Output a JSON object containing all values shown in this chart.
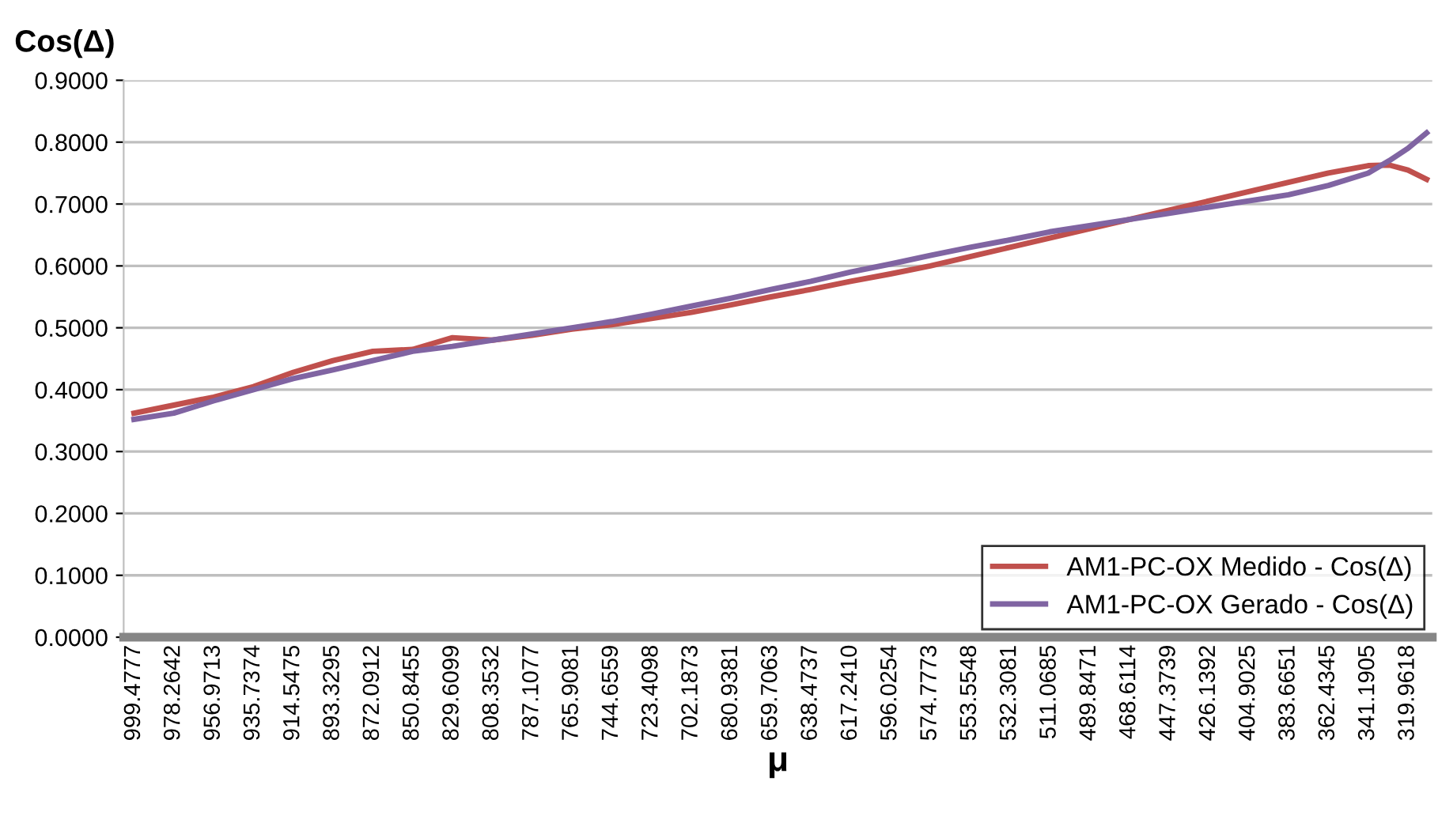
{
  "chart_data": {
    "type": "line",
    "ylabel": "Cos(Δ)",
    "xlabel": "μ",
    "x": [
      999.48,
      978.26,
      956.97,
      935.74,
      914.55,
      893.33,
      872.09,
      850.85,
      829.61,
      808.35,
      787.11,
      765.91,
      744.66,
      723.41,
      702.19,
      680.94,
      659.71,
      638.47,
      617.24,
      596.03,
      574.78,
      553.55,
      532.31,
      511.07,
      489.85,
      468.61,
      447.37,
      426.14,
      404.9,
      383.67,
      362.43,
      341.19,
      330,
      319.96,
      310
    ],
    "series": [
      {
        "name": "AM1-PC-OX Medido - Cos(Δ)",
        "color": "#c0504d",
        "values": [
          0.362,
          0.375,
          0.388,
          0.405,
          0.428,
          0.447,
          0.462,
          0.465,
          0.484,
          0.48,
          0.488,
          0.498,
          0.505,
          0.515,
          0.525,
          0.537,
          0.55,
          0.562,
          0.575,
          0.587,
          0.6,
          0.615,
          0.63,
          0.645,
          0.66,
          0.675,
          0.69,
          0.705,
          0.72,
          0.735,
          0.75,
          0.762,
          0.763,
          0.755,
          0.74
        ]
      },
      {
        "name": "AM1-PC-OX Gerado - Cos(Δ)",
        "color": "#8064a2",
        "values": [
          0.352,
          0.362,
          0.382,
          0.4,
          0.418,
          0.432,
          0.447,
          0.462,
          0.47,
          0.48,
          0.49,
          0.5,
          0.51,
          0.522,
          0.535,
          0.548,
          0.562,
          0.575,
          0.59,
          0.603,
          0.617,
          0.63,
          0.642,
          0.655,
          0.665,
          0.675,
          0.685,
          0.695,
          0.705,
          0.715,
          0.73,
          0.75,
          0.77,
          0.79,
          0.815
        ]
      }
    ],
    "xlim": [
      1005,
      307
    ],
    "xticks": [
      999.4777,
      978.2642,
      956.9713,
      935.7374,
      914.5475,
      893.3295,
      872.0912,
      850.8455,
      829.6099,
      808.3532,
      787.1077,
      765.9081,
      744.6559,
      723.4098,
      702.1873,
      680.9381,
      659.7063,
      638.4737,
      {
        "value": 617.241,
        "label": "617.2410"
      },
      596.0254,
      574.7773,
      553.5548,
      532.3081,
      511.0685,
      489.8471,
      468.6114,
      447.3739,
      426.1392,
      404.9025,
      383.6651,
      362.4345,
      341.1905,
      319.9618
    ],
    "ylim": [
      0,
      0.9
    ],
    "yticks": [
      {
        "value": 0,
        "label": "0.0000"
      },
      {
        "value": 0.1,
        "label": "0.1000"
      },
      {
        "value": 0.2,
        "label": "0.2000"
      },
      {
        "value": 0.3,
        "label": "0.3000"
      },
      {
        "value": 0.4,
        "label": "0.4000"
      },
      {
        "value": 0.5,
        "label": "0.5000"
      },
      {
        "value": 0.6,
        "label": "0.6000"
      },
      {
        "value": 0.7,
        "label": "0.7000"
      },
      {
        "value": 0.8,
        "label": "0.8000"
      },
      {
        "value": 0.9,
        "label": "0.9000"
      }
    ],
    "grid": "y",
    "legend": "bottom right",
    "marker": "none",
    "line_style": "solid"
  }
}
